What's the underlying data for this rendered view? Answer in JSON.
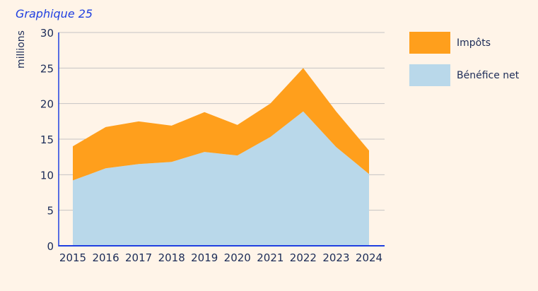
{
  "header": {
    "title": "Graphique 25"
  },
  "chart_data": {
    "type": "area",
    "stacked": true,
    "title": "Graphique 25",
    "xlabel": "",
    "ylabel": "millions",
    "ylim": [
      0,
      30
    ],
    "yticks": [
      0,
      5,
      10,
      15,
      20,
      25,
      30
    ],
    "grid": true,
    "legend_position": "right",
    "categories": [
      "2015",
      "2016",
      "2017",
      "2018",
      "2019",
      "2020",
      "2021",
      "2022",
      "2023",
      "2024"
    ],
    "series": [
      {
        "name": "Bénéfice net",
        "color": "#B9D8EA",
        "values": [
          9.2,
          10.9,
          11.5,
          11.8,
          13.2,
          12.7,
          15.3,
          18.9,
          13.9,
          10.1
        ]
      },
      {
        "name": "Impôts",
        "color": "#FF9F1C",
        "values": [
          4.8,
          5.8,
          6.0,
          5.1,
          5.6,
          4.3,
          4.7,
          6.1,
          5.0,
          3.3
        ]
      }
    ],
    "legend": [
      "Impôts",
      "Bénéfice net"
    ]
  },
  "colors": {
    "axis": "#1F3FE0",
    "grid": "#C4C4C4",
    "text": "#1B2B57",
    "background": "#FFF4E8"
  }
}
